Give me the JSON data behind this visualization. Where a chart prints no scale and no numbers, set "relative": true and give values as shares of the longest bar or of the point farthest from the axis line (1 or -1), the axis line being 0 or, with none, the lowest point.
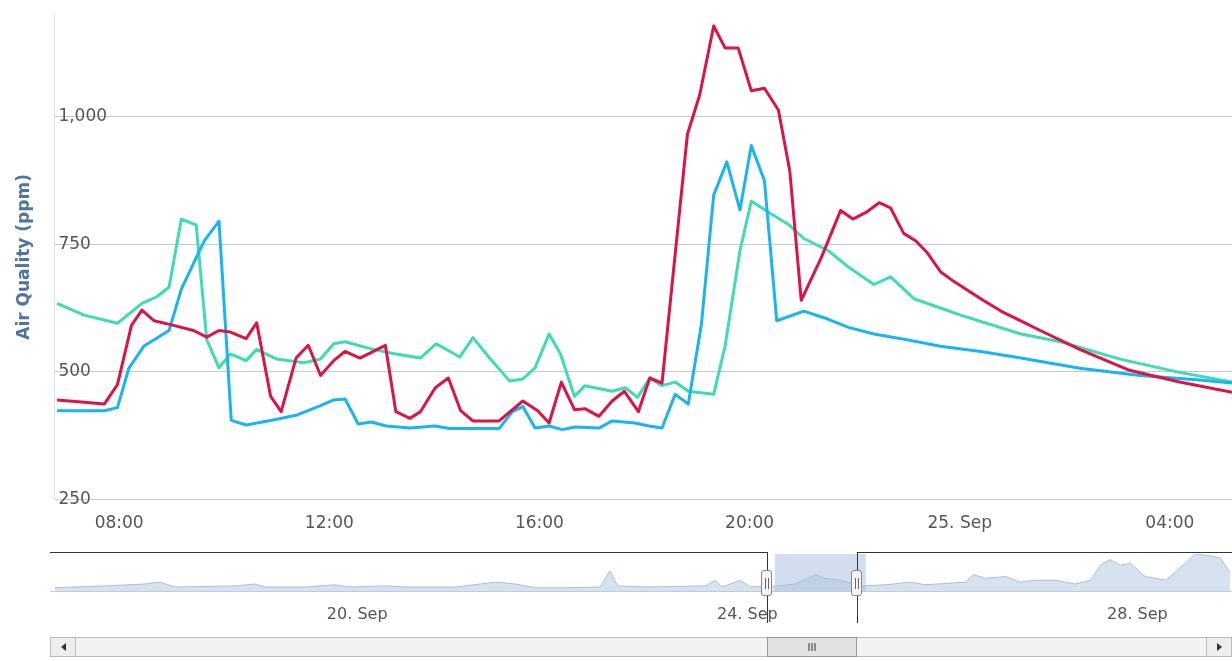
{
  "chart_data": [
    {
      "type": "line",
      "ylabel": "Air Quality (ppm)",
      "xlim": [
        "--09-24T06:46",
        "--09-25T05:11"
      ],
      "xticks": [
        {
          "value": "--09-24T08:00",
          "label": "08:00"
        },
        {
          "value": "--09-24T12:00",
          "label": "12:00"
        },
        {
          "value": "--09-24T16:00",
          "label": "16:00"
        },
        {
          "value": "--09-24T20:00",
          "label": "20:00"
        },
        {
          "value": "--09-25T00:00",
          "label": "25. Sep"
        },
        {
          "value": "--09-25T04:00",
          "label": "04:00"
        }
      ],
      "ylim": [
        250,
        1200
      ],
      "yticks": [
        250,
        500,
        750,
        {
          "value": 1000,
          "label": "1,000"
        }
      ],
      "grid": "y",
      "marker": "none",
      "line_style": "solid",
      "series": [
        {
          "color": "#dc1446",
          "x": [
            "--09-24T06:49",
            "--09-24T07:17",
            "--09-24T07:43",
            "--09-24T07:58",
            "--09-24T08:14",
            "--09-24T08:26",
            "--09-24T08:40",
            "--09-24T09:02",
            "--09-24T09:25",
            "--09-24T09:40",
            "--09-24T09:54",
            "--09-24T10:07",
            "--09-24T10:25",
            "--09-24T10:37",
            "--09-24T10:53",
            "--09-24T11:05",
            "--09-24T11:22",
            "--09-24T11:36",
            "--09-24T11:50",
            "--09-24T12:05",
            "--09-24T12:18",
            "--09-24T12:35",
            "--09-24T13:04",
            "--09-24T13:16",
            "--09-24T13:32",
            "--09-24T13:44",
            "--09-24T14:01",
            "--09-24T14:16",
            "--09-24T14:30",
            "--09-24T14:44",
            "--09-24T15:14",
            "--09-24T15:41",
            "--09-24T15:58",
            "--09-24T16:11",
            "--09-24T16:25",
            "--09-24T16:40",
            "--09-24T16:52",
            "--09-24T17:08",
            "--09-24T17:23",
            "--09-24T17:37",
            "--09-24T17:53",
            "--09-24T18:06",
            "--09-24T18:20",
            "--09-24T18:49",
            "--09-24T19:03",
            "--09-24T19:19",
            "--09-24T19:32",
            "--09-24T19:47",
            "--09-24T20:02",
            "--09-24T20:17",
            "--09-24T20:33",
            "--09-24T20:46",
            "--09-24T20:59",
            "--09-24T21:22",
            "--09-24T21:44",
            "--09-24T21:58",
            "--09-24T22:13",
            "--09-24T22:28",
            "--09-24T22:41",
            "--09-24T22:56",
            "--09-24T23:10",
            "--09-24T23:23",
            "--09-24T23:38",
            "--09-24T23:50",
            "--09-25T00:24",
            "--09-25T00:47",
            "--09-25T01:32",
            "--09-25T02:17",
            "--09-25T03:14",
            "--09-25T04:11",
            "--09-25T05:11"
          ],
          "values": [
            445,
            441,
            437,
            475,
            591,
            621,
            600,
            591,
            581,
            568,
            581,
            578,
            565,
            596,
            452,
            422,
            527,
            552,
            493,
            522,
            540,
            527,
            552,
            422,
            409,
            422,
            469,
            488,
            424,
            404,
            404,
            443,
            424,
            400,
            480,
            426,
            428,
            413,
            443,
            462,
            422,
            488,
            478,
            965,
            1042,
            1177,
            1134,
            1134,
            1050,
            1055,
            1012,
            892,
            640,
            724,
            816,
            799,
            812,
            831,
            821,
            771,
            756,
            733,
            696,
            681,
            643,
            619,
            581,
            544,
            503,
            480,
            460
          ]
        },
        {
          "color": "#1ab4f0",
          "x": [
            "--09-24T06:49",
            "--09-24T07:43",
            "--09-24T07:58",
            "--09-24T08:11",
            "--09-24T08:28",
            "--09-24T08:57",
            "--09-24T09:11",
            "--09-24T09:37",
            "--09-24T09:54",
            "--09-24T10:08",
            "--09-24T10:25",
            "--09-24T10:53",
            "--09-24T11:22",
            "--09-24T11:50",
            "--09-24T12:05",
            "--09-24T12:18",
            "--09-24T12:33",
            "--09-24T12:48",
            "--09-24T13:05",
            "--09-24T13:32",
            "--09-24T14:01",
            "--09-24T14:17",
            "--09-24T15:14",
            "--09-24T15:29",
            "--09-24T15:41",
            "--09-24T15:55",
            "--09-24T16:11",
            "--09-24T16:26",
            "--09-24T16:41",
            "--09-24T17:08",
            "--09-24T17:23",
            "--09-24T17:49",
            "--09-24T18:05",
            "--09-24T18:20",
            "--09-24T18:35",
            "--09-24T18:50",
            "--09-24T19:05",
            "--09-24T19:19",
            "--09-24T19:34",
            "--09-24T19:49",
            "--09-24T20:02",
            "--09-24T20:17",
            "--09-24T20:31",
            "--09-24T21:02",
            "--09-24T21:25",
            "--09-24T21:53",
            "--09-24T22:22",
            "--09-24T22:53",
            "--09-24T23:38",
            "--09-25T00:24",
            "--09-25T01:10",
            "--09-25T02:17",
            "--09-25T03:26",
            "--09-25T04:34",
            "--09-25T05:11"
          ],
          "values": [
            424,
            424,
            430,
            507,
            550,
            581,
            662,
            756,
            795,
            405,
            396,
            405,
            415,
            434,
            445,
            447,
            398,
            402,
            394,
            390,
            394,
            389,
            389,
            422,
            432,
            390,
            394,
            387,
            392,
            390,
            404,
            400,
            394,
            390,
            456,
            437,
            593,
            846,
            911,
            817,
            943,
            874,
            600,
            619,
            606,
            587,
            574,
            565,
            550,
            540,
            527,
            507,
            493,
            484,
            478
          ]
        },
        {
          "color": "#3edcb2",
          "x": [
            "--09-24T06:49",
            "--09-24T07:20",
            "--09-24T07:58",
            "--09-24T08:26",
            "--09-24T08:43",
            "--09-24T08:57",
            "--09-24T09:11",
            "--09-24T09:28",
            "--09-24T09:40",
            "--09-24T09:54",
            "--09-24T10:07",
            "--09-24T10:25",
            "--09-24T10:37",
            "--09-24T11:00",
            "--09-24T11:31",
            "--09-24T11:50",
            "--09-24T12:05",
            "--09-24T12:18",
            "--09-24T12:50",
            "--09-24T13:16",
            "--09-24T13:44",
            "--09-24T14:02",
            "--09-24T14:29",
            "--09-24T14:44",
            "--09-24T15:03",
            "--09-24T15:26",
            "--09-24T15:41",
            "--09-24T15:55",
            "--09-24T16:11",
            "--09-24T16:24",
            "--09-24T16:40",
            "--09-24T16:52",
            "--09-24T17:23",
            "--09-24T17:38",
            "--09-24T17:52",
            "--09-24T18:06",
            "--09-24T18:20",
            "--09-24T18:35",
            "--09-24T18:50",
            "--09-24T19:19",
            "--09-24T19:32",
            "--09-24T19:49",
            "--09-24T20:02",
            "--09-24T20:22",
            "--09-24T20:44",
            "--09-24T21:02",
            "--09-24T21:30",
            "--09-24T21:53",
            "--09-24T22:22",
            "--09-24T22:41",
            "--09-24T23:08",
            "--09-24T23:38",
            "--09-25T00:01",
            "--09-25T01:10",
            "--09-25T01:55",
            "--09-25T03:03",
            "--09-25T04:11",
            "--09-25T05:11"
          ],
          "values": [
            634,
            611,
            595,
            634,
            647,
            666,
            799,
            787,
            563,
            508,
            535,
            522,
            544,
            525,
            518,
            525,
            555,
            559,
            544,
            535,
            527,
            555,
            529,
            567,
            527,
            482,
            486,
            508,
            574,
            535,
            452,
            473,
            462,
            469,
            450,
            488,
            473,
            480,
            462,
            456,
            550,
            737,
            834,
            812,
            789,
            761,
            737,
            705,
            671,
            686,
            643,
            625,
            611,
            574,
            559,
            525,
            499,
            480
          ]
        }
      ]
    },
    {
      "type": "area",
      "relative": true,
      "tick_labels": "x",
      "xlim": [
        "--09-16T20:24",
        "--09-28T23:17"
      ],
      "xticks": [
        {
          "value": "--09-20",
          "label": "20. Sep"
        },
        {
          "value": "--09-24",
          "label": "24. Sep"
        },
        {
          "value": "--09-28",
          "label": "28. Sep"
        }
      ],
      "bands": [
        {
          "axis": "x",
          "from": "--09-24T06:46",
          "to": "--09-25T05:11",
          "color": "#b4c8e6"
        }
      ],
      "series": [
        {
          "color": "#a9bfdc",
          "x": [
            "--09-16T21:36",
            "--09-17T10:05",
            "--09-17T19:55",
            "--09-17T23:31",
            "--09-18T03:07",
            "--09-18T18:00",
            "--09-18T22:48",
            "--09-19T01:26",
            "--09-19T11:17",
            "--09-19T18:29",
            "--09-19T22:19",
            "--09-20T06:58",
            "--09-20T11:46",
            "--09-21T00:14",
            "--09-21T10:05",
            "--09-21T14:53",
            "--09-21T19:55",
            "--09-22T03:07",
            "--09-22T11:46",
            "--09-22T14:10",
            "--09-22T16:05",
            "--09-22T22:48",
            "--09-23T13:41",
            "--09-23T16:05",
            "--09-23T17:46",
            "--09-23T22:19",
            "--09-24T00:43",
            "--09-24T06:58",
            "--09-24T11:46",
            "--09-24T16:48",
            "--09-24T19:12",
            "--09-24T22:48",
            "--09-25T04:19",
            "--09-25T10:05",
            "--09-25T16:05",
            "--09-25T19:55",
            "--09-26T05:46",
            "--09-26T07:41",
            "--09-26T10:34",
            "--09-26T15:36",
            "--09-26T19:12",
            "--09-26T22:48",
            "--09-27T03:50",
            "--09-27T08:38",
            "--09-27T12:29",
            "--09-27T14:53",
            "--09-27T17:17",
            "--09-27T19:55",
            "--09-27T22:19",
            "--09-28T01:55",
            "--09-28T06:58",
            "--09-28T11:46",
            "--09-28T14:10",
            "--09-28T18:00",
            "--09-28T20:24",
            "--09-28T22:48"
          ],
          "values": [
            0.1,
            0.15,
            0.2,
            0.25,
            0.12,
            0.15,
            0.2,
            0.12,
            0.12,
            0.18,
            0.12,
            0.15,
            0.12,
            0.12,
            0.25,
            0.2,
            0.1,
            0.1,
            0.12,
            0.55,
            0.15,
            0.12,
            0.15,
            0.3,
            0.12,
            0.3,
            0.12,
            0.15,
            0.2,
            0.45,
            0.35,
            0.3,
            0.15,
            0.18,
            0.25,
            0.18,
            0.25,
            0.45,
            0.35,
            0.4,
            0.25,
            0.3,
            0.3,
            0.2,
            0.3,
            0.7,
            0.85,
            0.7,
            0.75,
            0.4,
            0.3,
            0.75,
            1,
            0.95,
            0.9,
            0.5
          ]
        }
      ]
    }
  ]
}
